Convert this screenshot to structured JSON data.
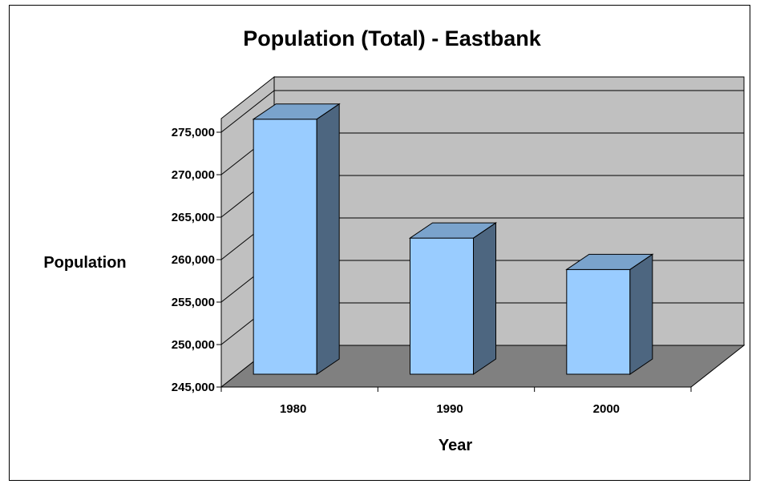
{
  "chart_data": {
    "type": "bar",
    "title": "Population (Total) - Eastbank",
    "xlabel": "Year",
    "ylabel": "Population",
    "categories": [
      "1980",
      "1990",
      "2000"
    ],
    "values": [
      275500,
      261500,
      257800
    ],
    "ylim": [
      245000,
      275000
    ],
    "yticks": [
      "245,000",
      "250,000",
      "255,000",
      "260,000",
      "265,000",
      "270,000",
      "275,000"
    ],
    "grid": true,
    "legend": "none",
    "colors": {
      "bar_front": "#99ccff",
      "bar_top": "#7aa3cc",
      "bar_side": "#4d6680",
      "back_wall": "#c0c0c0",
      "side_wall": "#c0c0c0",
      "floor": "#808080"
    }
  }
}
